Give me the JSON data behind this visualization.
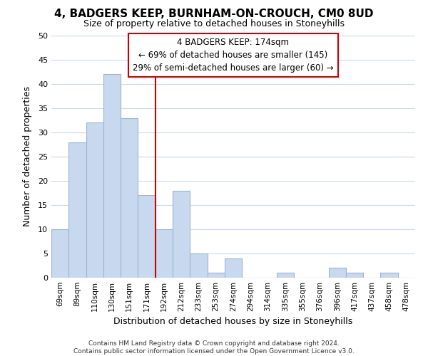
{
  "title": "4, BADGERS KEEP, BURNHAM-ON-CROUCH, CM0 8UD",
  "subtitle": "Size of property relative to detached houses in Stoneyhills",
  "xlabel": "Distribution of detached houses by size in Stoneyhills",
  "ylabel": "Number of detached properties",
  "bar_labels": [
    "69sqm",
    "89sqm",
    "110sqm",
    "130sqm",
    "151sqm",
    "171sqm",
    "192sqm",
    "212sqm",
    "233sqm",
    "253sqm",
    "274sqm",
    "294sqm",
    "314sqm",
    "335sqm",
    "355sqm",
    "376sqm",
    "396sqm",
    "417sqm",
    "437sqm",
    "458sqm",
    "478sqm"
  ],
  "bar_values": [
    10,
    28,
    32,
    42,
    33,
    17,
    10,
    18,
    5,
    1,
    4,
    0,
    0,
    1,
    0,
    0,
    2,
    1,
    0,
    1,
    0
  ],
  "bar_color": "#c8d8ee",
  "bar_edge_color": "#9ab5d8",
  "grid_color": "#c8d8ee",
  "background_color": "#ffffff",
  "vline_x_index": 5,
  "vline_color": "#cc0000",
  "ylim": [
    0,
    50
  ],
  "yticks": [
    0,
    5,
    10,
    15,
    20,
    25,
    30,
    35,
    40,
    45,
    50
  ],
  "annotation_title": "4 BADGERS KEEP: 174sqm",
  "annotation_line1": "← 69% of detached houses are smaller (145)",
  "annotation_line2": "29% of semi-detached houses are larger (60) →",
  "annotation_box_color": "#ffffff",
  "annotation_box_edge": "#cc0000",
  "footer_line1": "Contains HM Land Registry data © Crown copyright and database right 2024.",
  "footer_line2": "Contains public sector information licensed under the Open Government Licence v3.0."
}
